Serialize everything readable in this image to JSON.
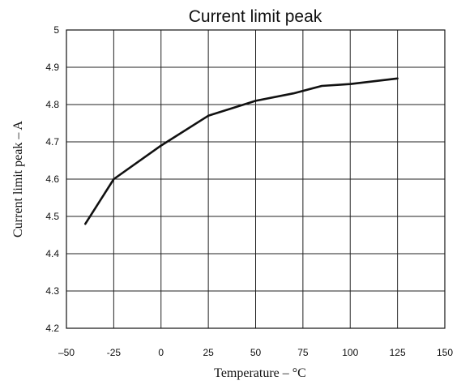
{
  "chart_data": {
    "type": "line",
    "title": "Current limit peak",
    "xlabel": "Temperature  –  °C",
    "ylabel": "Current limit peak  –  A",
    "xlim": [
      -50,
      150
    ],
    "ylim": [
      4.2,
      5.0
    ],
    "x_ticks": [
      -50,
      -25,
      0,
      25,
      50,
      75,
      100,
      125,
      150
    ],
    "y_ticks": [
      4.2,
      4.3,
      4.4,
      4.5,
      4.6,
      4.7,
      4.8,
      4.9,
      5.0
    ],
    "x_tick_labels": [
      "–50",
      "-25",
      "0",
      "25",
      "50",
      "75",
      "100",
      "125",
      "150"
    ],
    "y_tick_labels": [
      "4.2",
      "4.3",
      "4.4",
      "4.5",
      "4.6",
      "4.7",
      "4.8",
      "4.9",
      "5"
    ],
    "grid": true,
    "series": [
      {
        "x": [
          -40,
          -25,
          0,
          25,
          50,
          70,
          85,
          100,
          125
        ],
        "y": [
          4.48,
          4.6,
          4.69,
          4.77,
          4.81,
          4.83,
          4.85,
          4.855,
          4.87
        ]
      }
    ]
  }
}
